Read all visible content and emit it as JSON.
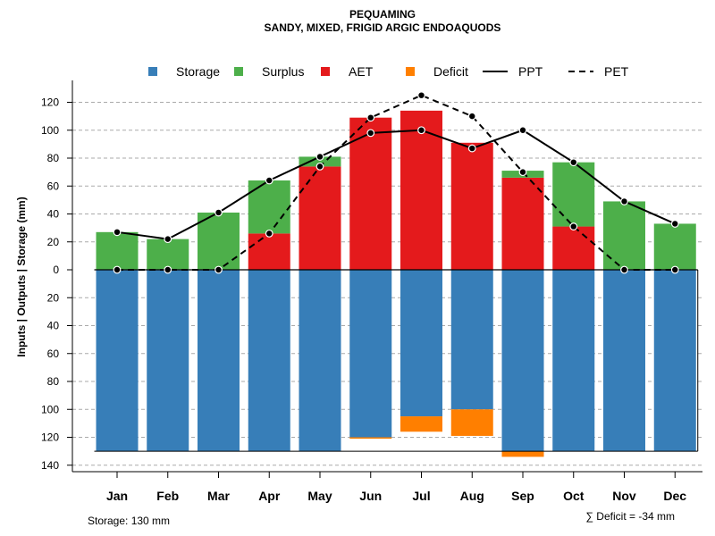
{
  "chart_data": {
    "type": "bar",
    "title": "PEQUAMING",
    "subtitle": "SANDY, MIXED, FRIGID ARGIC ENDOAQUODS",
    "ylabel": "Inputs | Outputs | Storage    (mm)",
    "ylim": [
      -140,
      130
    ],
    "yticks": [
      120,
      100,
      80,
      60,
      40,
      20,
      0,
      -20,
      -40,
      -60,
      -80,
      -100,
      -120,
      -140
    ],
    "ytick_labels": [
      "120",
      "100",
      "80",
      "60",
      "40",
      "20",
      "0",
      "20",
      "40",
      "60",
      "80",
      "100",
      "120",
      "140"
    ],
    "categories": [
      "Jan",
      "Feb",
      "Mar",
      "Apr",
      "May",
      "Jun",
      "Jul",
      "Aug",
      "Sep",
      "Oct",
      "Nov",
      "Dec"
    ],
    "legend": [
      {
        "label": "Storage",
        "kind": "square",
        "color": "#377eb8"
      },
      {
        "label": "Surplus",
        "kind": "square",
        "color": "#4daf4a"
      },
      {
        "label": "AET",
        "kind": "square",
        "color": "#e41a1c"
      },
      {
        "label": "Deficit",
        "kind": "square",
        "color": "#ff7f00"
      },
      {
        "label": "PPT",
        "kind": "solid-line",
        "color": "#000000"
      },
      {
        "label": "PET",
        "kind": "dashed-line",
        "color": "#000000"
      }
    ],
    "colors": {
      "storage": "#377eb8",
      "surplus": "#4daf4a",
      "aet": "#e41a1c",
      "deficit": "#ff7f00",
      "grid": "#aaaaaa",
      "line": "#000000"
    },
    "series": [
      {
        "name": "Storage",
        "values": [
          130,
          130,
          130,
          130,
          130,
          120,
          105,
          100,
          130,
          130,
          130,
          130
        ]
      },
      {
        "name": "Surplus",
        "values": [
          27,
          22,
          41,
          38,
          7,
          0,
          0,
          0,
          5,
          46,
          49,
          33
        ]
      },
      {
        "name": "AET",
        "values": [
          0,
          0,
          0,
          26,
          74,
          109,
          114,
          91,
          66,
          31,
          0,
          0
        ]
      },
      {
        "name": "Deficit",
        "values": [
          0,
          0,
          0,
          0,
          0,
          1,
          11,
          19,
          4,
          0,
          0,
          0
        ]
      },
      {
        "name": "PPT",
        "values": [
          27,
          22,
          41,
          64,
          81,
          98,
          100,
          87,
          100,
          77,
          49,
          33
        ]
      },
      {
        "name": "PET",
        "values": [
          0,
          0,
          0,
          26,
          74,
          109,
          125,
          110,
          70,
          31,
          0,
          0
        ]
      }
    ],
    "storage_capacity": 130,
    "footer_left": "Storage: 130 mm",
    "footer_right": "∑ Deficit = -34 mm"
  }
}
